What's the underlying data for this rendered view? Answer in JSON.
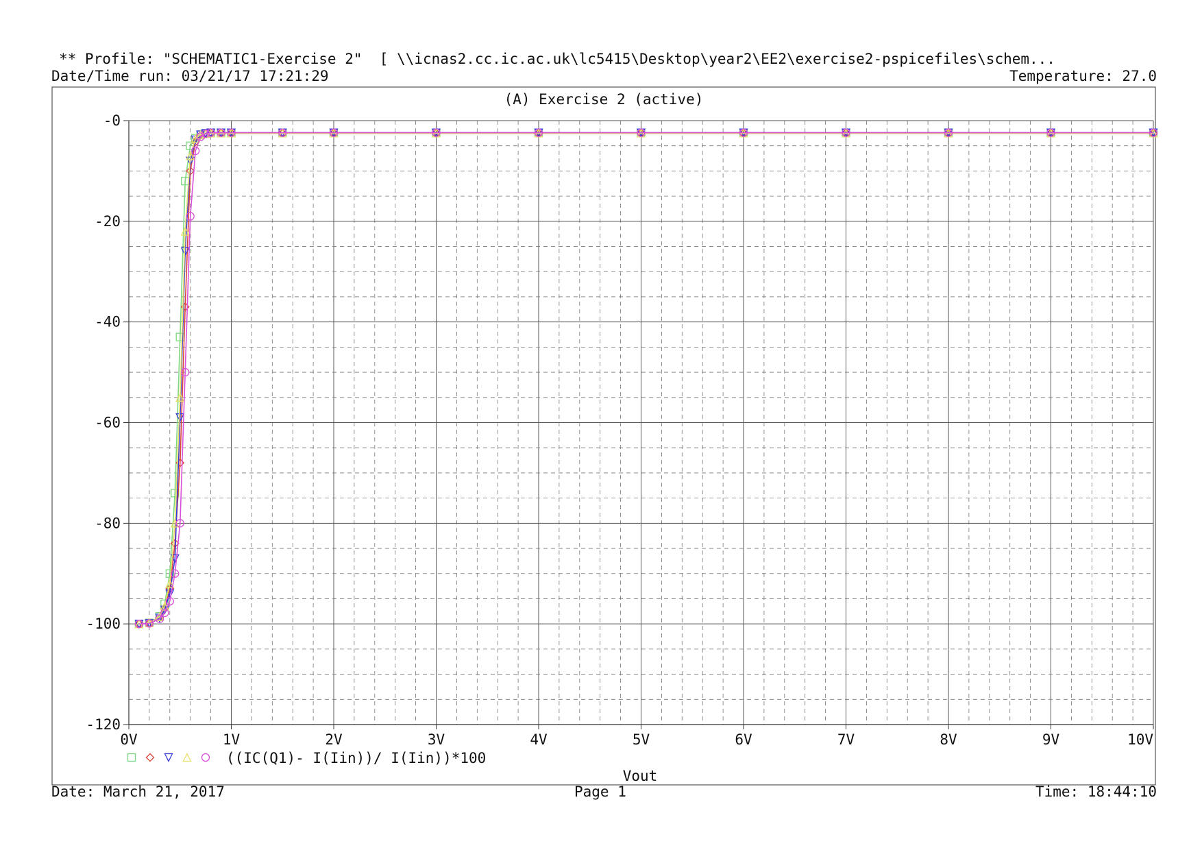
{
  "header": {
    "profile": "** Profile: \"SCHEMATIC1-Exercise 2\"  [ \\\\icnas2.cc.ic.ac.uk\\lc5415\\Desktop\\year2\\EE2\\exercise2-pspicefiles\\schem...",
    "date_time_run": "Date/Time run: 03/21/17 17:21:29",
    "temperature": "Temperature: 27.0"
  },
  "footer": {
    "date": "Date: March 21, 2017",
    "page": "Page 1",
    "time": "Time: 18:44:10"
  },
  "chart_data": {
    "type": "line",
    "title": "(A) Exercise 2 (active)",
    "xlabel": "Vout",
    "ylabel": "",
    "xlim": [
      0,
      10
    ],
    "ylim": [
      -120,
      0
    ],
    "x_ticks": [
      "0V",
      "1V",
      "2V",
      "3V",
      "4V",
      "5V",
      "6V",
      "7V",
      "8V",
      "9V",
      "10V"
    ],
    "y_ticks": [
      "-0",
      "-20",
      "-40",
      "-60",
      "-80",
      "-100",
      "-120"
    ],
    "grid": true,
    "legend": {
      "placement": "bottom-left",
      "markers": [
        "square",
        "diamond",
        "triangle-down",
        "triangle-up",
        "circle"
      ],
      "label": "((IC(Q1)- I(Iin))/ I(Iin))*100"
    },
    "series": [
      {
        "marker": "square",
        "color": "#7fd87f",
        "x": [
          0.1,
          0.2,
          0.3,
          0.35,
          0.4,
          0.45,
          0.5,
          0.55,
          0.6,
          0.65,
          0.7,
          0.75,
          0.8,
          0.9,
          1.0,
          1.5,
          2.0,
          3.0,
          4.0,
          5.0,
          6.0,
          7.0,
          8.0,
          9.0,
          10.0
        ],
        "y": [
          -100,
          -99.8,
          -98.5,
          -96,
          -90,
          -74,
          -43,
          -12,
          -5,
          -3.5,
          -2.8,
          -2.6,
          -2.5,
          -2.5,
          -2.5,
          -2.5,
          -2.5,
          -2.5,
          -2.5,
          -2.5,
          -2.5,
          -2.5,
          -2.5,
          -2.5,
          -2.5
        ]
      },
      {
        "marker": "diamond",
        "color": "#d9453a",
        "x": [
          0.1,
          0.2,
          0.3,
          0.35,
          0.4,
          0.45,
          0.5,
          0.55,
          0.6,
          0.65,
          0.7,
          0.75,
          0.8,
          0.9,
          1.0,
          1.5,
          2.0,
          3.0,
          4.0,
          5.0,
          6.0,
          7.0,
          8.0,
          9.0,
          10.0
        ],
        "y": [
          -100,
          -99.9,
          -98.7,
          -97,
          -93,
          -84,
          -68,
          -37,
          -10,
          -4.2,
          -2.9,
          -2.6,
          -2.5,
          -2.5,
          -2.5,
          -2.5,
          -2.5,
          -2.5,
          -2.5,
          -2.5,
          -2.5,
          -2.5,
          -2.5,
          -2.5,
          -2.5
        ]
      },
      {
        "marker": "triangle-down",
        "color": "#3a3ad9",
        "x": [
          0.1,
          0.2,
          0.3,
          0.35,
          0.4,
          0.45,
          0.5,
          0.55,
          0.6,
          0.65,
          0.7,
          0.75,
          0.8,
          0.9,
          1.0,
          1.5,
          2.0,
          3.0,
          4.0,
          5.0,
          6.0,
          7.0,
          8.0,
          9.0,
          10.0
        ],
        "y": [
          -100,
          -99.9,
          -98.8,
          -97.2,
          -94,
          -87,
          -59,
          -26,
          -8,
          -3.8,
          -2.8,
          -2.5,
          -2.4,
          -2.4,
          -2.4,
          -2.4,
          -2.4,
          -2.4,
          -2.4,
          -2.4,
          -2.4,
          -2.4,
          -2.4,
          -2.4,
          -2.4
        ]
      },
      {
        "marker": "triangle-up",
        "color": "#e8e06a",
        "x": [
          0.1,
          0.2,
          0.3,
          0.35,
          0.4,
          0.45,
          0.5,
          0.55,
          0.6,
          0.65,
          0.7,
          0.75,
          0.8,
          0.9,
          1.0,
          1.5,
          2.0,
          3.0,
          4.0,
          5.0,
          6.0,
          7.0,
          8.0,
          9.0,
          10.0
        ],
        "y": [
          -100,
          -99.8,
          -98.6,
          -96.5,
          -92,
          -80,
          -55,
          -22,
          -7,
          -3.6,
          -2.8,
          -2.6,
          -2.5,
          -2.5,
          -2.5,
          -2.5,
          -2.5,
          -2.5,
          -2.5,
          -2.5,
          -2.5,
          -2.5,
          -2.5,
          -2.5,
          -2.5
        ]
      },
      {
        "marker": "circle",
        "color": "#d94fd9",
        "x": [
          0.1,
          0.2,
          0.3,
          0.35,
          0.4,
          0.45,
          0.5,
          0.55,
          0.6,
          0.65,
          0.7,
          0.75,
          0.8,
          0.9,
          1.0,
          1.5,
          2.0,
          3.0,
          4.0,
          5.0,
          6.0,
          7.0,
          8.0,
          9.0,
          10.0
        ],
        "y": [
          -100,
          -99.9,
          -99,
          -97.8,
          -95.5,
          -90,
          -80,
          -50,
          -19,
          -6,
          -3.2,
          -2.6,
          -2.4,
          -2.4,
          -2.4,
          -2.4,
          -2.4,
          -2.4,
          -2.4,
          -2.4,
          -2.4,
          -2.4,
          -2.4,
          -2.4,
          -2.4
        ]
      }
    ]
  }
}
